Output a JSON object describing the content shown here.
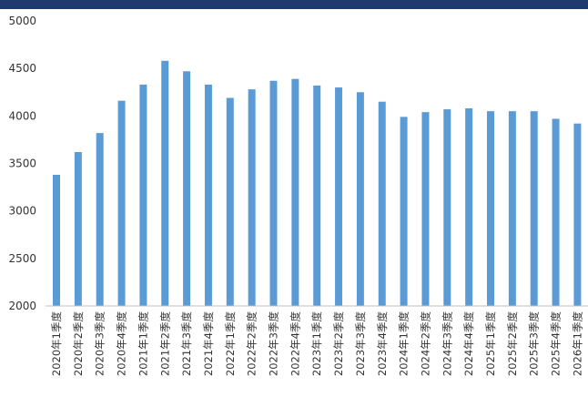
{
  "colors": {
    "header_bar": "#1f3b6e",
    "bar": "#5b9bd5"
  },
  "chart_data": {
    "type": "bar",
    "title": "",
    "xlabel": "",
    "ylabel": "",
    "ylim": [
      2000,
      5000
    ],
    "yticks": [
      2000,
      2500,
      3000,
      3500,
      4000,
      4500,
      5000
    ],
    "grid": false,
    "legend": "none",
    "categories": [
      "2020年1季度",
      "2020年2季度",
      "2020年3季度",
      "2020年4季度",
      "2021年1季度",
      "2021年2季度",
      "2021年3季度",
      "2021年4季度",
      "2022年1季度",
      "2022年2季度",
      "2022年3季度",
      "2022年4季度",
      "2023年1季度",
      "2023年2季度",
      "2023年3季度",
      "2023年4季度",
      "2024年1季度",
      "2024年2季度",
      "2024年3季度",
      "2024年4季度",
      "2025年1季度",
      "2025年2季度",
      "2025年3季度",
      "2025年4季度",
      "2026年1季度"
    ],
    "values": [
      3380,
      3620,
      3820,
      4160,
      4330,
      4580,
      4470,
      4330,
      4190,
      4280,
      4370,
      4390,
      4320,
      4300,
      4250,
      4150,
      3990,
      4040,
      4070,
      4080,
      4050,
      4050,
      4050,
      3970,
      3920
    ]
  }
}
